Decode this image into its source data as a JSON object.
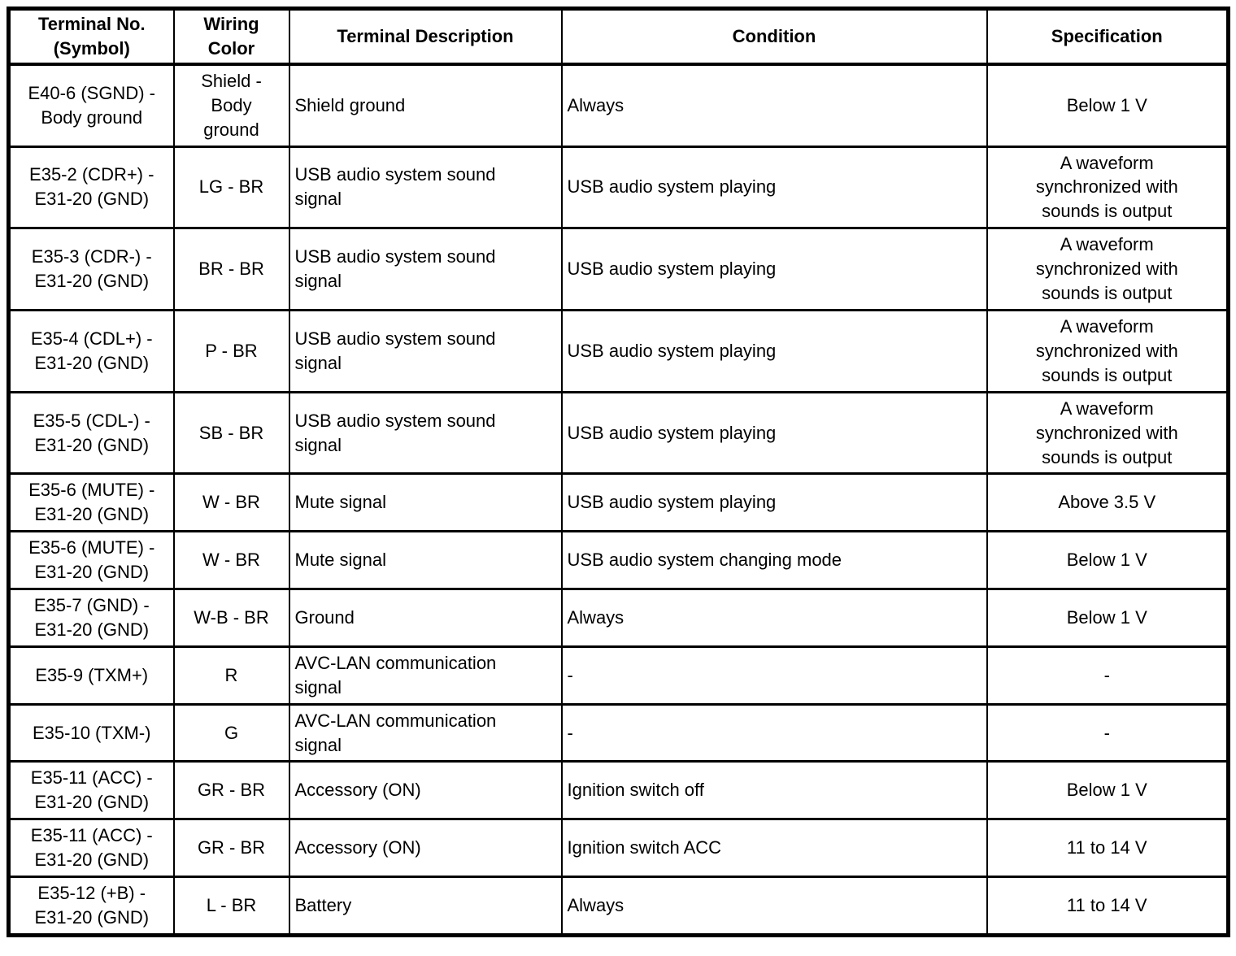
{
  "colors": {
    "background": "#ffffff",
    "border": "#000000",
    "text": "#000000"
  },
  "table": {
    "headers": [
      {
        "key": "terminal-no",
        "label": "Terminal No.\n(Symbol)"
      },
      {
        "key": "wiring-color",
        "label": "Wiring\nColor"
      },
      {
        "key": "terminal-description",
        "label": "Terminal Description"
      },
      {
        "key": "condition",
        "label": "Condition"
      },
      {
        "key": "specification",
        "label": "Specification"
      }
    ],
    "rows": [
      {
        "tall": true,
        "cells": [
          "E40-6 (SGND) -\nBody ground",
          "Shield -\nBody\nground",
          "Shield ground",
          "Always",
          "Below 1 V"
        ]
      },
      {
        "tall": true,
        "cells": [
          "E35-2 (CDR+) -\nE31-20 (GND)",
          "LG - BR",
          "USB audio system sound\nsignal",
          "USB audio system playing",
          "A waveform\nsynchronized with\nsounds is output"
        ]
      },
      {
        "tall": true,
        "cells": [
          "E35-3 (CDR-) -\nE31-20 (GND)",
          "BR - BR",
          "USB audio system sound\nsignal",
          "USB audio system playing",
          "A waveform\nsynchronized with\nsounds is output"
        ]
      },
      {
        "tall": true,
        "cells": [
          "E35-4 (CDL+) -\nE31-20 (GND)",
          "P - BR",
          "USB audio system sound\nsignal",
          "USB audio system playing",
          "A waveform\nsynchronized with\nsounds is output"
        ]
      },
      {
        "tall": true,
        "cells": [
          "E35-5 (CDL-) -\nE31-20 (GND)",
          "SB - BR",
          "USB audio system sound\nsignal",
          "USB audio system playing",
          "A waveform\nsynchronized with\nsounds is output"
        ]
      },
      {
        "tall": false,
        "cells": [
          "E35-6 (MUTE) -\nE31-20 (GND)",
          "W - BR",
          "Mute signal",
          "USB audio system playing",
          "Above 3.5 V"
        ]
      },
      {
        "tall": false,
        "cells": [
          "E35-6 (MUTE) -\nE31-20 (GND)",
          "W - BR",
          "Mute signal",
          "USB audio system changing mode",
          "Below 1 V"
        ]
      },
      {
        "tall": false,
        "cells": [
          "E35-7 (GND) -\nE31-20 (GND)",
          "W-B - BR",
          "Ground",
          "Always",
          "Below 1 V"
        ]
      },
      {
        "tall": false,
        "cells": [
          "E35-9 (TXM+)",
          "R",
          "AVC-LAN communication\nsignal",
          "-",
          "-"
        ]
      },
      {
        "tall": false,
        "cells": [
          "E35-10 (TXM-)",
          "G",
          "AVC-LAN communication\nsignal",
          "-",
          "-"
        ]
      },
      {
        "tall": false,
        "cells": [
          "E35-11 (ACC) -\nE31-20 (GND)",
          "GR - BR",
          "Accessory (ON)",
          "Ignition switch off",
          "Below 1 V"
        ]
      },
      {
        "tall": false,
        "cells": [
          "E35-11 (ACC) -\nE31-20 (GND)",
          "GR - BR",
          "Accessory (ON)",
          "Ignition switch ACC",
          "11 to 14 V"
        ]
      },
      {
        "tall": false,
        "cells": [
          "E35-12 (+B) -\nE31-20 (GND)",
          "L - BR",
          "Battery",
          "Always",
          "11 to 14 V"
        ]
      }
    ]
  }
}
